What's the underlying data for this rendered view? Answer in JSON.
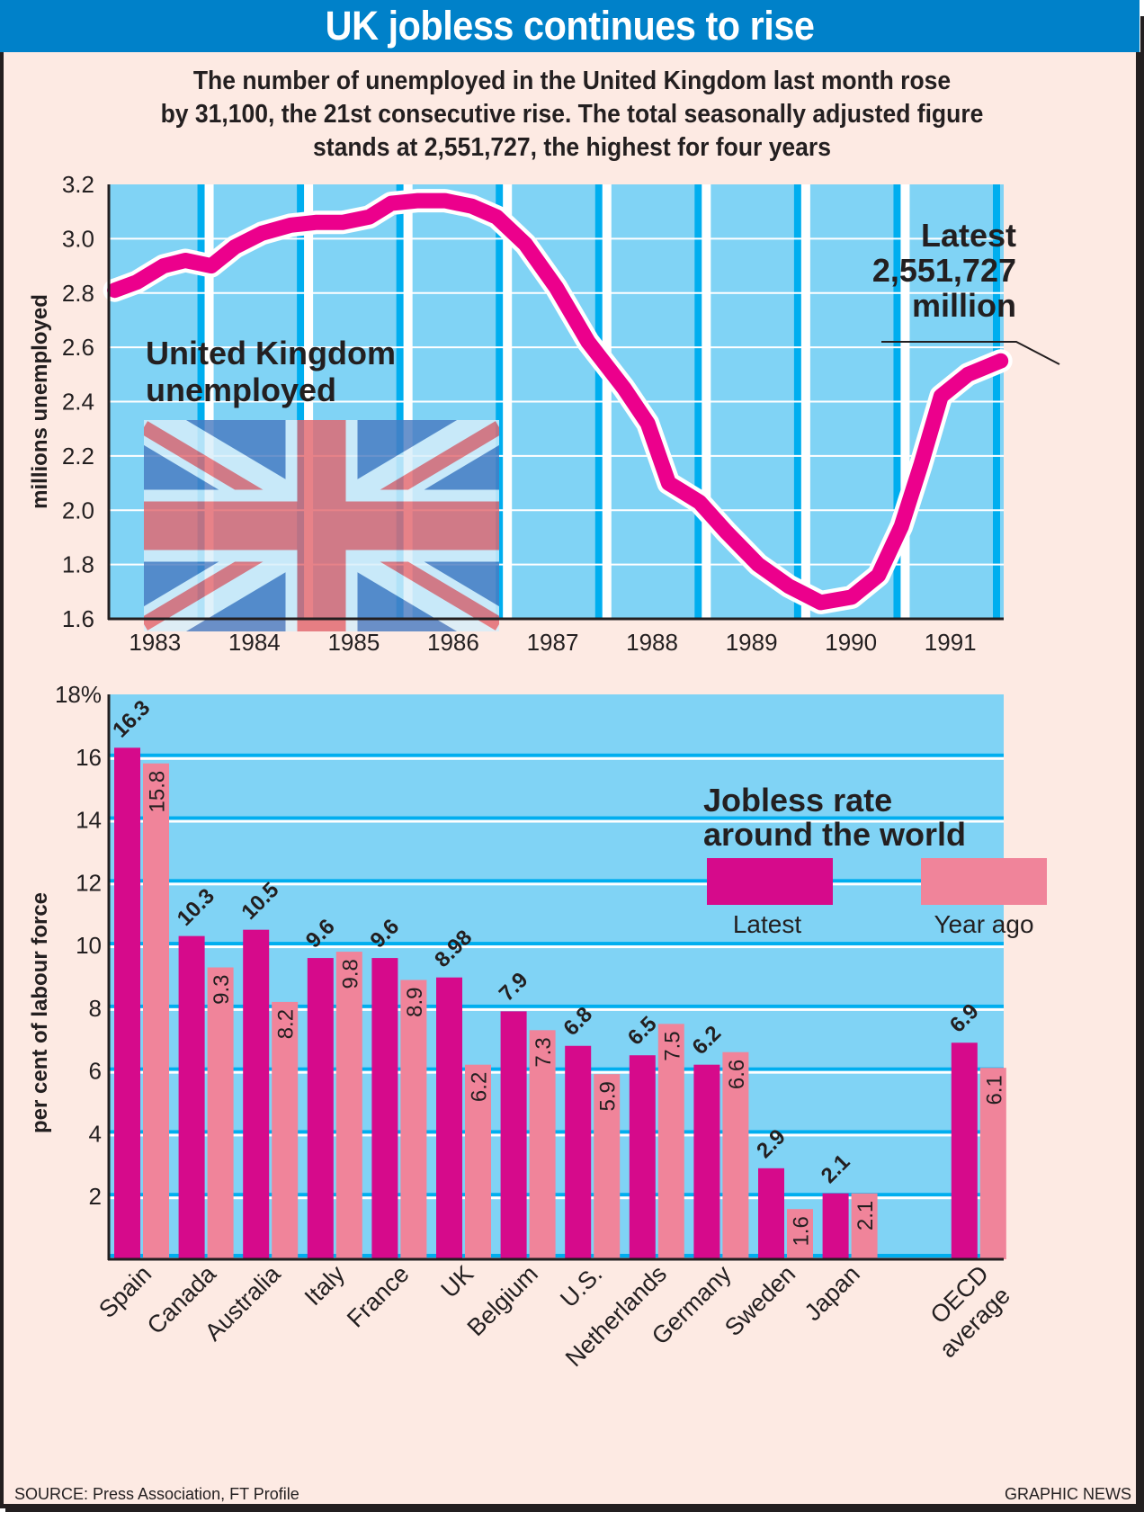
{
  "title": "UK jobless continues to rise",
  "subtitle_lines": [
    "The number of unemployed in the United Kingdom last month rose",
    "by 31,100, the 21st consecutive rise. The total seasonally adjusted figure",
    "stands at 2,551,727, the highest for four years"
  ],
  "colors": {
    "title_bar": "#0081C9",
    "background": "#FDEAE3",
    "plot_bg": "#80D3F5",
    "stripe": "#00AEEF",
    "line": "#EC008C",
    "latest": "#D60A8B",
    "year_ago": "#F0849A"
  },
  "footer": {
    "source": "SOURCE: Press Association, FT Profile",
    "credit": "GRAPHIC NEWS"
  },
  "chart_data": [
    {
      "type": "line",
      "title": "United Kingdom unemployed",
      "title_lines": [
        "United Kingdom",
        "unemployed"
      ],
      "xlabel": "",
      "ylabel": "millions unemployed",
      "ylim": [
        1.6,
        3.2
      ],
      "yticks": [
        "3.2",
        "3.0",
        "2.8",
        "2.6",
        "2.4",
        "2.2",
        "2.0",
        "1.8",
        "1.6"
      ],
      "ytick_values": [
        3.2,
        3.0,
        2.8,
        2.6,
        2.4,
        2.2,
        2.0,
        1.8,
        1.6
      ],
      "xlim": [
        1983.0,
        1992.0
      ],
      "xticks": [
        "1983",
        "1984",
        "1985",
        "1986",
        "1987",
        "1988",
        "1989",
        "1990",
        "1991"
      ],
      "grid": true,
      "annotation_lines": [
        "Latest",
        "2,551,727",
        "million"
      ],
      "series": [
        {
          "name": "UK unemployed (millions)",
          "x": [
            1983.06,
            1983.28,
            1983.55,
            1983.77,
            1984.03,
            1984.27,
            1984.54,
            1984.83,
            1985.08,
            1985.35,
            1985.62,
            1985.84,
            1986.11,
            1986.38,
            1986.65,
            1986.9,
            1987.19,
            1987.5,
            1987.82,
            1988.18,
            1988.42,
            1988.63,
            1988.94,
            1989.21,
            1989.53,
            1989.84,
            1990.16,
            1990.47,
            1990.74,
            1990.97,
            1991.17,
            1991.37,
            1991.64,
            1991.97
          ],
          "values": [
            2.81,
            2.84,
            2.9,
            2.92,
            2.9,
            2.97,
            3.02,
            3.05,
            3.06,
            3.06,
            3.08,
            3.13,
            3.14,
            3.14,
            3.12,
            3.08,
            2.98,
            2.82,
            2.62,
            2.45,
            2.32,
            2.1,
            2.03,
            1.92,
            1.8,
            1.72,
            1.66,
            1.68,
            1.76,
            1.94,
            2.17,
            2.42,
            2.5,
            2.55
          ]
        }
      ]
    },
    {
      "type": "bar",
      "title": "Jobless rate around the world",
      "title_lines": [
        "Jobless rate",
        "around the world"
      ],
      "xlabel": "",
      "ylabel": "per cent of labour force",
      "ylim": [
        0,
        18
      ],
      "yticks": [
        "18%",
        "16",
        "14",
        "12",
        "10",
        "8",
        "6",
        "4",
        "2"
      ],
      "ytick_values": [
        18,
        16,
        14,
        12,
        10,
        8,
        6,
        4,
        2
      ],
      "grid": true,
      "legend_position": "top-right",
      "categories": [
        "Spain",
        "Canada",
        "Australia",
        "Italy",
        "France",
        "UK",
        "Belgium",
        "U.S.",
        "Netherlands",
        "Germany",
        "Sweden",
        "Japan",
        "OECD average"
      ],
      "category_lines": [
        [
          "Spain"
        ],
        [
          "Canada"
        ],
        [
          "Australia"
        ],
        [
          "Italy"
        ],
        [
          "France"
        ],
        [
          "UK"
        ],
        [
          "Belgium"
        ],
        [
          "U.S."
        ],
        [
          "Netherlands"
        ],
        [
          "Germany"
        ],
        [
          "Sweden"
        ],
        [
          "Japan"
        ],
        [
          "OECD",
          "average"
        ]
      ],
      "series": [
        {
          "name": "Latest",
          "values": [
            16.3,
            10.3,
            10.5,
            9.6,
            9.6,
            8.98,
            7.9,
            6.8,
            6.5,
            6.2,
            2.9,
            2.1,
            6.9
          ],
          "labels": [
            "16.3",
            "10.3",
            "10.5",
            "9.6",
            "9.6",
            "8.98",
            "7.9",
            "6.8",
            "6.5",
            "6.2",
            "2.9",
            "2.1",
            "6.9"
          ]
        },
        {
          "name": "Year ago",
          "values": [
            15.8,
            9.3,
            8.2,
            9.8,
            8.9,
            6.2,
            7.3,
            5.9,
            7.5,
            6.6,
            1.6,
            2.1,
            6.1
          ],
          "labels": [
            "15.8",
            "9.3",
            "8.2",
            "9.8",
            "8.9",
            "6.2",
            "7.3",
            "5.9",
            "7.5",
            "6.6",
            "1.6",
            "2.1",
            "6.1"
          ]
        }
      ]
    }
  ]
}
